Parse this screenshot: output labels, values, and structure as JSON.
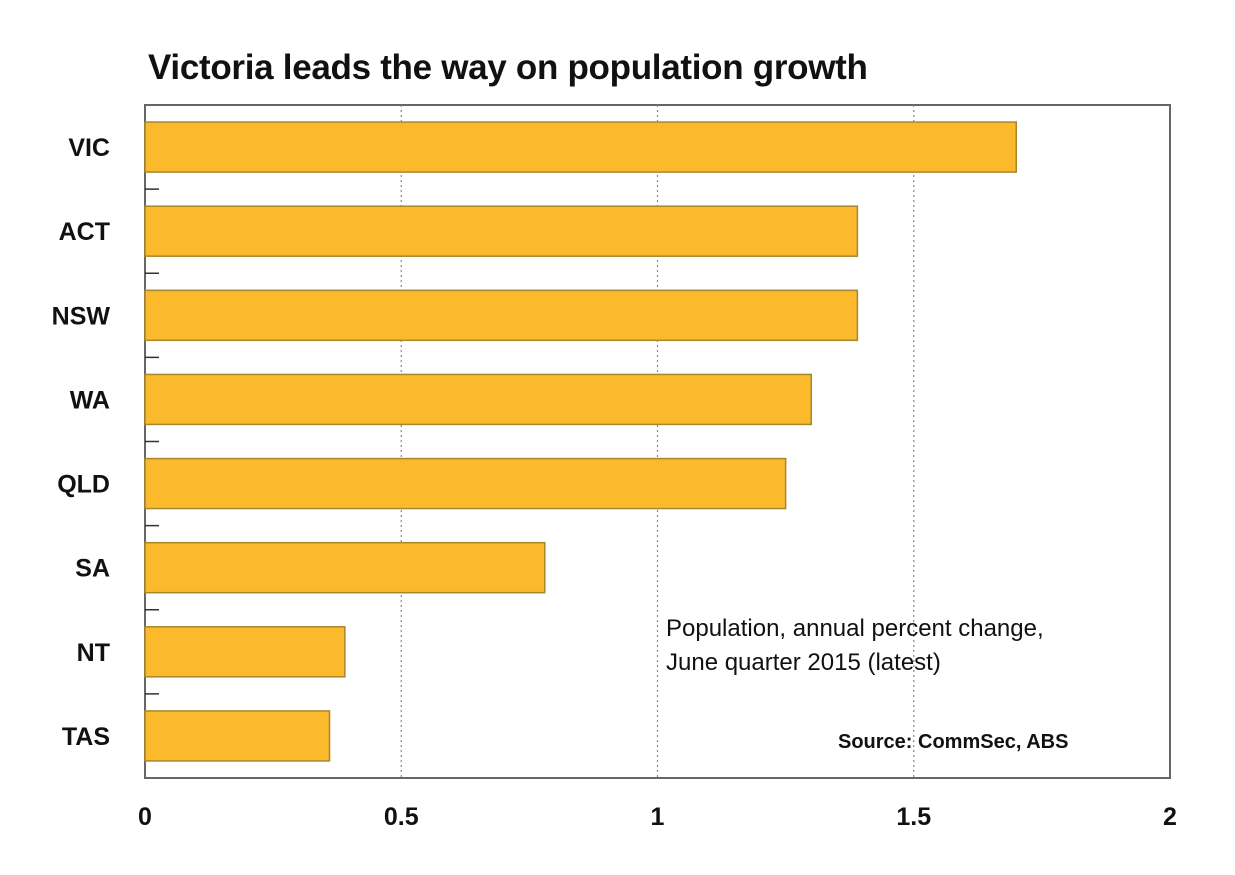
{
  "chart_data": {
    "type": "bar",
    "orientation": "horizontal",
    "title": "Victoria leads the way on population growth",
    "categories": [
      "VIC",
      "ACT",
      "NSW",
      "WA",
      "QLD",
      "SA",
      "NT",
      "TAS"
    ],
    "values": [
      1.7,
      1.39,
      1.39,
      1.3,
      1.25,
      0.78,
      0.39,
      0.36
    ],
    "xlim": [
      0,
      2
    ],
    "xticks": [
      "0",
      "0.5",
      "1",
      "1.5",
      "2"
    ],
    "xtick_values": [
      0,
      0.5,
      1,
      1.5,
      2
    ],
    "grid": "vertical dotted",
    "note_lines": [
      "Population, annual percent change,",
      "June quarter 2015 (latest)"
    ],
    "source": "Source: CommSec, ABS",
    "colors": {
      "bar": "#FBBA2C",
      "bar_edge": "#A8862E",
      "axis": "#666666",
      "grid": "#888888"
    }
  }
}
